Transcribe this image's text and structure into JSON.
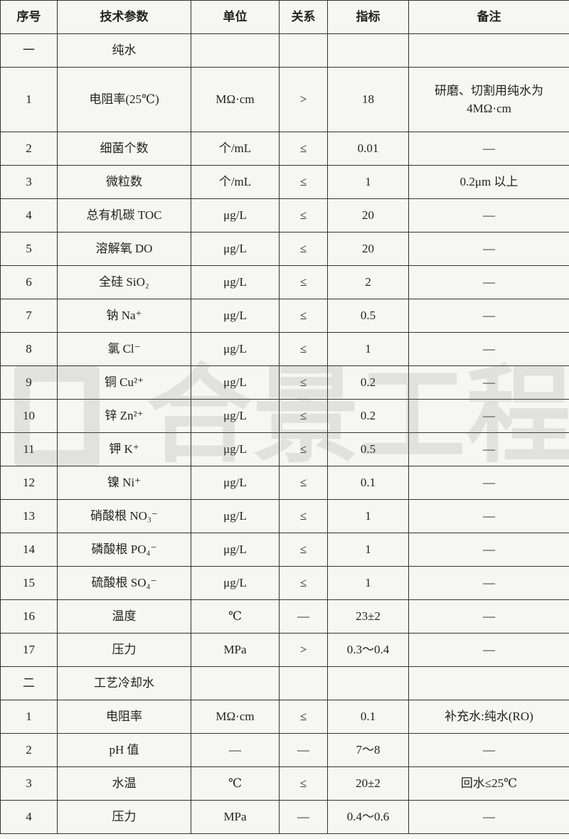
{
  "table": {
    "header": [
      "序号",
      "技术参数",
      "单位",
      "关系",
      "指标",
      "备注"
    ],
    "rows": [
      [
        "一",
        "纯水"
      ],
      [
        "1",
        "电阻率(25℃)",
        "MΩ·cm",
        ">",
        "18",
        [
          "研磨、切割用纯水为",
          "4MΩ·cm"
        ]
      ],
      [
        "2",
        "细菌个数",
        "个/mL",
        "≤",
        "0.01",
        "—"
      ],
      [
        "3",
        "微粒数",
        "个/mL",
        "≤",
        "1",
        "0.2μm 以上"
      ],
      [
        "4",
        "总有机碳 TOC",
        "μg/L",
        "≤",
        "20",
        "—"
      ],
      [
        "5",
        "溶解氧 DO",
        "μg/L",
        "≤",
        "20",
        "—"
      ],
      [
        "6",
        "全硅 SiO₂",
        "μg/L",
        "≤",
        "2",
        "—"
      ],
      [
        "7",
        "钠 Na⁺",
        "μg/L",
        "≤",
        "0.5",
        "—"
      ],
      [
        "8",
        "氯 Cl⁻",
        "μg/L",
        "≤",
        "1",
        "—"
      ],
      [
        "9",
        "铜 Cu²⁺",
        "μg/L",
        "≤",
        "0.2",
        "—"
      ],
      [
        "10",
        "锌 Zn²⁺",
        "μg/L",
        "≤",
        "0.2",
        "—"
      ],
      [
        "11",
        "钾 K⁺",
        "μg/L",
        "≤",
        "0.5",
        "—"
      ],
      [
        "12",
        "镍 Ni⁺",
        "μg/L",
        "≤",
        "0.1",
        "—"
      ],
      [
        "13",
        "硝酸根 NO₃⁻",
        "μg/L",
        "≤",
        "1",
        "—"
      ],
      [
        "14",
        "磷酸根 PO₄⁻",
        "μg/L",
        "≤",
        "1",
        "—"
      ],
      [
        "15",
        "硫酸根 SO₄⁻",
        "μg/L",
        "≤",
        "1",
        "—"
      ],
      [
        "16",
        "温度",
        "℃",
        "—",
        "23±2",
        "—"
      ],
      [
        "17",
        "压力",
        "MPa",
        ">",
        "0.3～0.4",
        "—"
      ],
      [
        "二",
        "工艺冷却水"
      ],
      [
        "1",
        "电阻率",
        "MΩ·cm",
        "≤",
        "0.1",
        "补充水:纯水(RO)"
      ],
      [
        "2",
        "pH 值",
        "—",
        "—",
        "7～8",
        "—"
      ],
      [
        "3",
        "水温",
        "℃",
        "≤",
        "20±2",
        "回水≤25℃"
      ],
      [
        "4",
        "压力",
        "MPa",
        "—",
        "0.4～0.6",
        "—"
      ]
    ]
  },
  "watermark": "合景工程"
}
